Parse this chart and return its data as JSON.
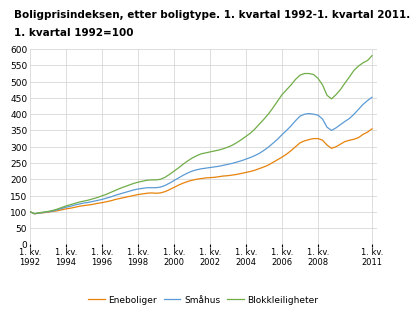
{
  "title_line1": "Boligprisindeksen, etter boligtype. 1. kvartal 1992-1. kvartal 2011.",
  "title_line2": "1. kvartal 1992=100",
  "title_fontsize": 7.5,
  "ylim": [
    0,
    600
  ],
  "yticks": [
    0,
    50,
    100,
    150,
    200,
    250,
    300,
    350,
    400,
    450,
    500,
    550,
    600
  ],
  "xtick_years": [
    1992,
    1994,
    1996,
    1998,
    2000,
    2002,
    2004,
    2006,
    2008,
    2011
  ],
  "background_color": "#ffffff",
  "grid_color": "#d0d0d0",
  "line_colors": {
    "Eneboliger": "#e8820a",
    "Smahus": "#5b9bd5",
    "Blokkleiligheter": "#70ad47"
  },
  "legend_labels": [
    "Eneboliger",
    "Småhus",
    "Blokkleiligheter"
  ],
  "quarters": [
    1992.0,
    1992.25,
    1992.5,
    1992.75,
    1993.0,
    1993.25,
    1993.5,
    1993.75,
    1994.0,
    1994.25,
    1994.5,
    1994.75,
    1995.0,
    1995.25,
    1995.5,
    1995.75,
    1996.0,
    1996.25,
    1996.5,
    1996.75,
    1997.0,
    1997.25,
    1997.5,
    1997.75,
    1998.0,
    1998.25,
    1998.5,
    1998.75,
    1999.0,
    1999.25,
    1999.5,
    1999.75,
    2000.0,
    2000.25,
    2000.5,
    2000.75,
    2001.0,
    2001.25,
    2001.5,
    2001.75,
    2002.0,
    2002.25,
    2002.5,
    2002.75,
    2003.0,
    2003.25,
    2003.5,
    2003.75,
    2004.0,
    2004.25,
    2004.5,
    2004.75,
    2005.0,
    2005.25,
    2005.5,
    2005.75,
    2006.0,
    2006.25,
    2006.5,
    2006.75,
    2007.0,
    2007.25,
    2007.5,
    2007.75,
    2008.0,
    2008.25,
    2008.5,
    2008.75,
    2009.0,
    2009.25,
    2009.5,
    2009.75,
    2010.0,
    2010.25,
    2010.5,
    2010.75,
    2011.0
  ],
  "eneboliger": [
    100,
    94,
    96,
    97,
    99,
    101,
    103,
    106,
    109,
    111,
    114,
    117,
    119,
    121,
    123,
    126,
    128,
    131,
    134,
    138,
    141,
    144,
    147,
    150,
    153,
    155,
    157,
    158,
    157,
    158,
    162,
    168,
    175,
    182,
    188,
    193,
    197,
    200,
    202,
    204,
    205,
    206,
    208,
    210,
    211,
    213,
    215,
    218,
    221,
    224,
    228,
    233,
    238,
    244,
    252,
    260,
    268,
    277,
    288,
    300,
    312,
    318,
    322,
    325,
    325,
    320,
    305,
    295,
    300,
    308,
    316,
    320,
    323,
    328,
    338,
    345,
    355
  ],
  "smahus": [
    100,
    94,
    96,
    98,
    100,
    102,
    106,
    110,
    114,
    117,
    121,
    124,
    127,
    129,
    132,
    135,
    138,
    142,
    146,
    151,
    155,
    159,
    163,
    167,
    170,
    172,
    174,
    174,
    174,
    176,
    181,
    188,
    196,
    204,
    212,
    219,
    225,
    229,
    232,
    234,
    236,
    238,
    240,
    243,
    246,
    249,
    253,
    257,
    262,
    267,
    273,
    280,
    289,
    299,
    311,
    323,
    337,
    350,
    364,
    380,
    394,
    400,
    402,
    400,
    397,
    385,
    360,
    350,
    358,
    368,
    378,
    387,
    400,
    415,
    430,
    442,
    452
  ],
  "blokkleiligheter": [
    100,
    94,
    97,
    99,
    101,
    104,
    108,
    113,
    118,
    122,
    126,
    130,
    133,
    136,
    140,
    144,
    149,
    154,
    160,
    166,
    172,
    177,
    182,
    187,
    191,
    194,
    197,
    198,
    198,
    200,
    206,
    215,
    225,
    235,
    246,
    256,
    265,
    272,
    278,
    281,
    284,
    287,
    290,
    294,
    299,
    305,
    313,
    322,
    332,
    342,
    355,
    370,
    385,
    401,
    420,
    440,
    460,
    475,
    490,
    507,
    520,
    525,
    525,
    522,
    510,
    490,
    458,
    447,
    460,
    476,
    496,
    515,
    535,
    548,
    558,
    565,
    580
  ]
}
